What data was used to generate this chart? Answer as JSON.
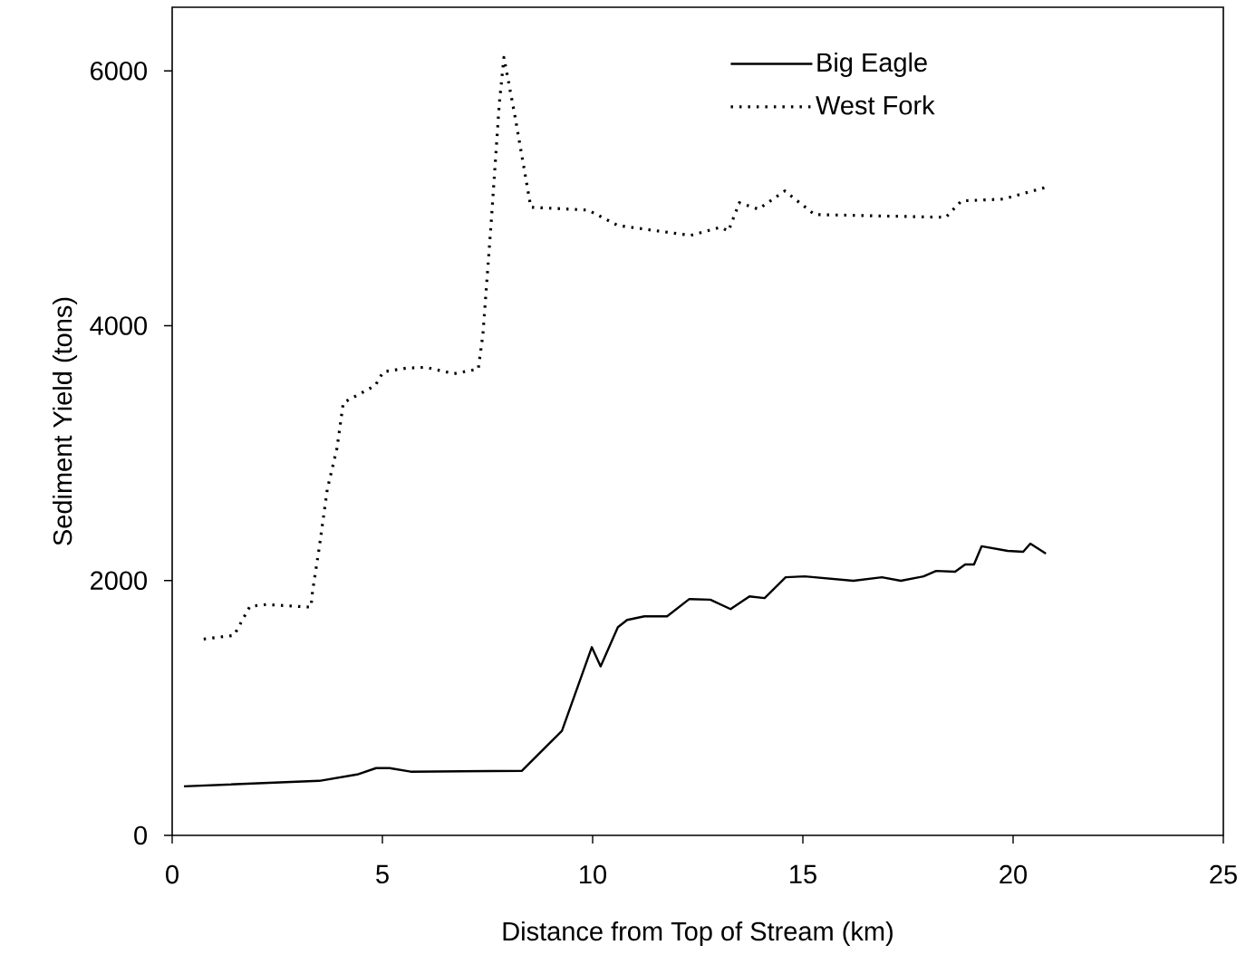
{
  "chart_data": {
    "type": "line",
    "xlabel": "Distance from Top of Stream (km)",
    "ylabel": "Sediment Yield (tons)",
    "xlim": [
      0,
      25
    ],
    "ylim": [
      0,
      6500
    ],
    "xticks": [
      0,
      5,
      10,
      15,
      20,
      25
    ],
    "yticks": [
      0,
      2000,
      4000,
      6000
    ],
    "grid": false,
    "legend": "top right",
    "marker": "none",
    "series": [
      {
        "name": "Big Eagle",
        "color": "#000000",
        "line_style": "solid",
        "x": [
          0.28,
          3.5,
          4.4,
          4.85,
          5.17,
          5.67,
          8.32,
          8.73,
          9.27,
          9.98,
          10.19,
          10.6,
          10.82,
          11.23,
          11.77,
          12.3,
          12.8,
          13.28,
          13.73,
          14.09,
          14.59,
          15.04,
          16.2,
          16.88,
          17.33,
          17.87,
          18.17,
          18.62,
          18.86,
          19.07,
          19.25,
          19.87,
          20.24,
          20.41,
          20.78
        ],
        "values": [
          385,
          428,
          478,
          528,
          528,
          500,
          507,
          642,
          820,
          1477,
          1327,
          1634,
          1691,
          1719,
          1719,
          1855,
          1850,
          1776,
          1876,
          1862,
          2026,
          2033,
          1998,
          2026,
          1998,
          2033,
          2076,
          2069,
          2126,
          2126,
          2269,
          2233,
          2226,
          2290,
          2212
        ]
      },
      {
        "name": "West Fork",
        "color": "#000000",
        "line_style": "dotted",
        "x": [
          0.75,
          1.47,
          1.85,
          2.24,
          3.3,
          3.34,
          3.49,
          3.69,
          3.92,
          4.07,
          4.83,
          5.02,
          5.56,
          6.03,
          6.7,
          7.28,
          7.39,
          7.59,
          7.78,
          7.89,
          8.15,
          8.53,
          9.89,
          10.6,
          12.33,
          13.04,
          13.23,
          13.49,
          13.94,
          14.57,
          15.28,
          18.4,
          18.77,
          19.76,
          20.86
        ],
        "values": [
          1541,
          1570,
          1798,
          1812,
          1791,
          1919,
          2240,
          2718,
          3039,
          3396,
          3531,
          3638,
          3667,
          3674,
          3624,
          3660,
          3931,
          4823,
          5743,
          6107,
          5650,
          4930,
          4908,
          4787,
          4709,
          4773,
          4744,
          4966,
          4915,
          5058,
          4873,
          4851,
          4980,
          4994,
          5094
        ]
      }
    ]
  }
}
